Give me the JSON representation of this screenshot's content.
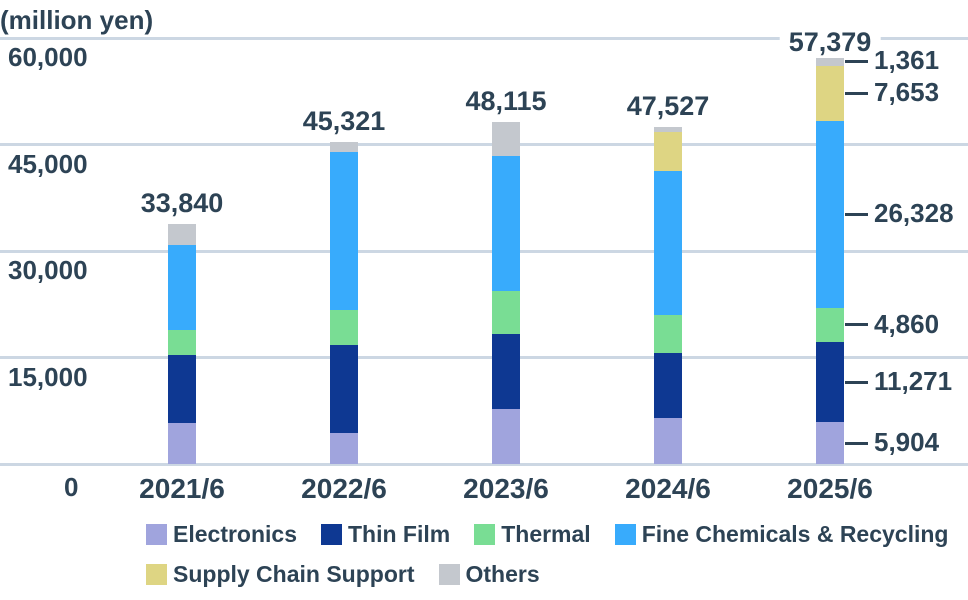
{
  "colors": {
    "text": "#2d4355",
    "gridline": "#ccd7e3",
    "background": "#ffffff",
    "total_label_box": "#ffffff"
  },
  "chart_data": {
    "type": "bar",
    "stacked": true,
    "ylabel": "(million yen)",
    "grid": true,
    "legend_position": "bottom",
    "categories": [
      "2021/6",
      "2022/6",
      "2023/6",
      "2024/6",
      "2025/6"
    ],
    "series": [
      {
        "name": "Electronics",
        "color": "#a0a4dd",
        "values": [
          5800,
          4400,
          7700,
          6450,
          5904
        ],
        "last_label": "5,904"
      },
      {
        "name": "Thin Film",
        "color": "#0e3892",
        "values": [
          9600,
          12400,
          10600,
          9200,
          11271
        ],
        "last_label": "11,271"
      },
      {
        "name": "Thermal",
        "color": "#79dd94",
        "values": [
          3500,
          4950,
          6000,
          5400,
          4860
        ],
        "last_label": "4,860"
      },
      {
        "name": "Fine Chemicals & Recycling",
        "color": "#38abfc",
        "values": [
          11900,
          22200,
          19100,
          20250,
          26328
        ],
        "last_label": "26,328"
      },
      {
        "name": "Supply Chain Support",
        "color": "#ded583",
        "values": [
          0,
          0,
          0,
          5500,
          7653
        ],
        "last_label": "7,653"
      },
      {
        "name": "Others",
        "color": "#c4c8ce",
        "values": [
          3040,
          1371,
          4715,
          727,
          1361
        ],
        "last_label": "1,361"
      }
    ],
    "totals": {
      "labels": [
        "33,840",
        "45,321",
        "48,115",
        "47,527",
        "57,379"
      ],
      "boxed_last": true
    },
    "y_axis": {
      "ticks": [
        60000,
        45000,
        30000,
        15000,
        0
      ],
      "tick_labels": [
        "60,000",
        "45,000",
        "30,000",
        "15,000",
        "0"
      ],
      "range": [
        0,
        60000
      ]
    }
  }
}
